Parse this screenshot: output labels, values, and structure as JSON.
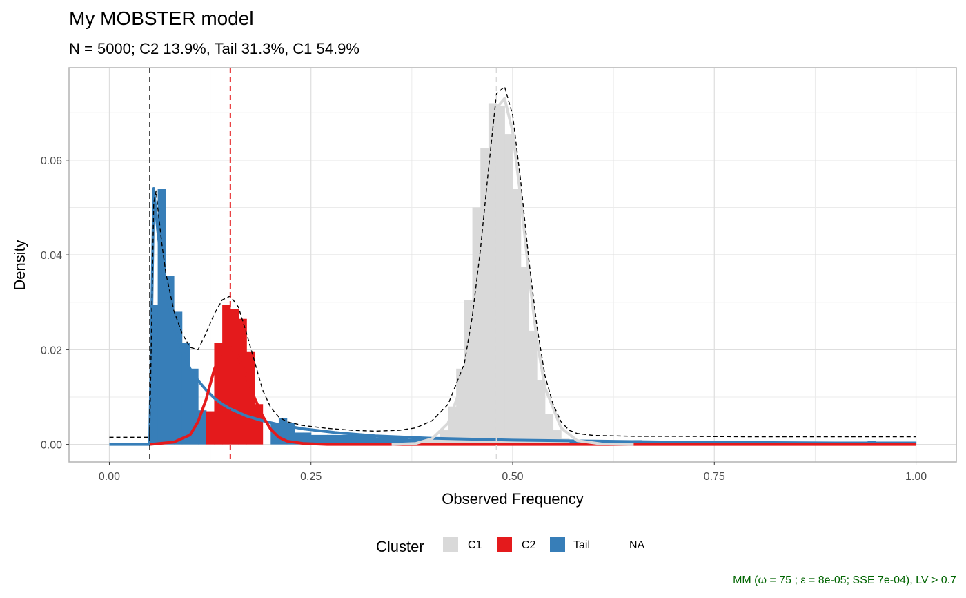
{
  "chart_data": {
    "type": "histogram",
    "title": "My MOBSTER model",
    "subtitle": "N = 5000; C2 13.9%, Tail 31.3%, C1 54.9%",
    "xlabel": "Observed Frequency",
    "ylabel": "Density",
    "xlim": [
      -0.05,
      1.05
    ],
    "ylim": [
      -0.0037,
      0.0795
    ],
    "x_ticks": [
      0,
      0.25,
      0.5,
      0.75,
      1
    ],
    "x_tick_labels": [
      "0.00",
      "0.25",
      "0.50",
      "0.75",
      "1.00"
    ],
    "y_ticks": [
      0,
      0.02,
      0.04,
      0.06
    ],
    "y_tick_labels": [
      "0.00",
      "0.02",
      "0.04",
      "0.06"
    ],
    "grid": true,
    "legend_position": "bottom",
    "legend": {
      "title": "Cluster",
      "entries": [
        {
          "label": "C1",
          "color": "#d9d9d9"
        },
        {
          "label": "C2",
          "color": "#e41a1c"
        },
        {
          "label": "Tail",
          "color": "#377eb8"
        },
        {
          "label": "NA",
          "color": null
        }
      ]
    },
    "caption": "MM (ω = 75 ; ε = 8e-05; SSE 7e-04), LV > 0.7",
    "caption_color": "#006400",
    "colors": {
      "C1": "#d9d9d9",
      "C2": "#e41a1c",
      "Tail": "#377eb8",
      "mixture": "#000000"
    },
    "vlines": [
      {
        "x": 0.05,
        "color": "#000000",
        "style": "dashed"
      },
      {
        "x": 0.15,
        "color": "#e41a1c",
        "style": "dashed"
      },
      {
        "x": 0.48,
        "color": "#d9d9d9",
        "style": "dashed"
      }
    ],
    "series": [
      {
        "name": "Tail",
        "kind": "bars",
        "color": "#377eb8",
        "x": [
          0.055,
          0.065,
          0.075,
          0.085,
          0.095,
          0.105,
          0.115,
          0.205,
          0.215,
          0.225,
          0.235,
          0.245,
          0.255,
          0.265,
          0.275,
          0.285,
          0.295,
          0.305,
          0.315,
          0.325,
          0.335,
          0.345,
          0.355,
          0.365,
          0.375,
          0.385,
          0.395,
          0.405,
          0.415,
          0.425,
          0.435,
          0.445,
          0.455,
          0.465,
          0.475,
          0.485,
          0.495,
          0.505,
          0.515,
          0.525,
          0.535,
          0.545,
          0.555,
          0.565,
          0.575,
          0.585,
          0.595,
          0.605,
          0.615,
          0.625,
          0.635,
          0.645,
          0.655,
          0.665,
          0.675,
          0.685,
          0.695,
          0.705,
          0.715,
          0.725,
          0.735,
          0.745,
          0.755,
          0.765,
          0.775,
          0.785,
          0.795,
          0.805,
          0.815,
          0.825,
          0.835,
          0.845,
          0.855,
          0.865,
          0.875,
          0.885,
          0.895,
          0.905,
          0.915,
          0.925,
          0.935,
          0.945,
          0.955,
          0.965,
          0.975,
          0.985,
          0.995
        ],
        "values": [
          0.0295,
          0.054,
          0.0355,
          0.028,
          0.0215,
          0.016,
          0.0072,
          0.0045,
          0.0055,
          0.0045,
          0.0025,
          0.0025,
          0.002,
          0.002,
          0.002,
          0.002,
          0.002,
          0.002,
          0.002,
          0.0018,
          0.0015,
          0.0015,
          0.0014,
          0.0013,
          0.0012,
          0.0012,
          0.0015,
          0.0011,
          0.0011,
          0.0011,
          0.001,
          0.001,
          0.001,
          0.001,
          0.001,
          0.001,
          0.001,
          0.001,
          0.001,
          0.001,
          0.0009,
          0.0009,
          0.0009,
          0.0009,
          0.0008,
          0.0008,
          0.0008,
          0.0008,
          0.0009,
          0.0008,
          0.0008,
          0.0007,
          0.0009,
          0.0008,
          0.0007,
          0.0007,
          0.0007,
          0.0007,
          0.0006,
          0.0007,
          0.0006,
          0.0007,
          0.0007,
          0.0007,
          0.0006,
          0.0006,
          0.0006,
          0.0006,
          0.0006,
          0.0006,
          0.0006,
          0.0006,
          0.0006,
          0.0006,
          0.0006,
          0.0006,
          0.0006,
          0.0006,
          0.0006,
          0.0006,
          0.0006,
          0.0007,
          0.0006,
          0.0006,
          0.0006,
          0.0006,
          0.0006
        ]
      },
      {
        "name": "C2",
        "kind": "bars",
        "color": "#e41a1c",
        "x": [
          0.125,
          0.135,
          0.145,
          0.155,
          0.165,
          0.175,
          0.185
        ],
        "values": [
          0.007,
          0.0215,
          0.0295,
          0.0285,
          0.0265,
          0.0195,
          0.0085
        ]
      },
      {
        "name": "C1",
        "kind": "bars",
        "color": "#d9d9d9",
        "x": [
          0.395,
          0.405,
          0.415,
          0.425,
          0.435,
          0.445,
          0.455,
          0.465,
          0.475,
          0.485,
          0.495,
          0.505,
          0.515,
          0.525,
          0.535,
          0.545,
          0.555,
          0.565
        ],
        "values": [
          0.001,
          0.0015,
          0.003,
          0.008,
          0.016,
          0.0305,
          0.05,
          0.0625,
          0.072,
          0.0715,
          0.0655,
          0.054,
          0.0375,
          0.024,
          0.0135,
          0.0065,
          0.003,
          0.0012
        ]
      },
      {
        "name": "Tail",
        "kind": "density",
        "color": "#377eb8",
        "x": [
          0.05,
          0.055,
          0.06,
          0.065,
          0.07,
          0.08,
          0.09,
          0.1,
          0.11,
          0.12,
          0.13,
          0.14,
          0.15,
          0.17,
          0.19,
          0.21,
          0.24,
          0.28,
          0.33,
          0.4,
          0.5,
          0.6,
          0.7,
          0.8,
          0.9,
          1.0
        ],
        "values": [
          0.0,
          0.054,
          0.045,
          0.038,
          0.0325,
          0.025,
          0.02,
          0.016,
          0.0135,
          0.0115,
          0.0098,
          0.0085,
          0.0075,
          0.006,
          0.005,
          0.0042,
          0.0033,
          0.0025,
          0.0018,
          0.0013,
          0.0009,
          0.0007,
          0.0005,
          0.0004,
          0.0003,
          0.0002
        ]
      },
      {
        "name": "C2",
        "kind": "density",
        "color": "#e41a1c",
        "x": [
          0.05,
          0.08,
          0.1,
          0.11,
          0.12,
          0.13,
          0.14,
          0.15,
          0.16,
          0.17,
          0.18,
          0.19,
          0.2,
          0.21,
          0.22,
          0.24,
          0.27,
          0.3,
          0.4,
          0.5,
          0.6,
          0.7,
          0.8,
          0.9,
          1.0
        ],
        "values": [
          0.0,
          0.0005,
          0.002,
          0.0048,
          0.0095,
          0.0158,
          0.0198,
          0.0205,
          0.0185,
          0.0145,
          0.0098,
          0.006,
          0.0032,
          0.0015,
          0.0007,
          0.0002,
          0.0,
          0.0,
          0.0,
          0.0,
          0.0,
          0.0,
          0.0,
          0.0,
          0.0
        ]
      },
      {
        "name": "C1",
        "kind": "density",
        "color": "#d9d9d9",
        "x": [
          0.35,
          0.38,
          0.4,
          0.42,
          0.44,
          0.45,
          0.46,
          0.47,
          0.48,
          0.49,
          0.5,
          0.51,
          0.52,
          0.53,
          0.54,
          0.56,
          0.58,
          0.61,
          0.65
        ],
        "values": [
          0.0,
          0.0002,
          0.0012,
          0.0045,
          0.014,
          0.024,
          0.038,
          0.055,
          0.071,
          0.073,
          0.066,
          0.052,
          0.036,
          0.022,
          0.012,
          0.0035,
          0.0008,
          0.0001,
          0.0
        ]
      },
      {
        "name": "",
        "kind": "mixture",
        "color": "#000000",
        "x": [
          0.0,
          0.05,
          0.055,
          0.058,
          0.06,
          0.065,
          0.07,
          0.08,
          0.09,
          0.1,
          0.11,
          0.12,
          0.13,
          0.14,
          0.15,
          0.16,
          0.17,
          0.18,
          0.19,
          0.2,
          0.21,
          0.22,
          0.24,
          0.27,
          0.3,
          0.33,
          0.36,
          0.38,
          0.4,
          0.42,
          0.44,
          0.45,
          0.46,
          0.47,
          0.48,
          0.49,
          0.5,
          0.51,
          0.52,
          0.53,
          0.54,
          0.55,
          0.56,
          0.57,
          0.58,
          0.6,
          0.65,
          0.7,
          0.8,
          0.9,
          1.0
        ],
        "values": [
          0.0015,
          0.0015,
          0.051,
          0.0535,
          0.05,
          0.0425,
          0.0362,
          0.0282,
          0.0235,
          0.0205,
          0.02,
          0.0235,
          0.0275,
          0.0305,
          0.0313,
          0.029,
          0.0235,
          0.0175,
          0.0115,
          0.0078,
          0.0058,
          0.0048,
          0.004,
          0.0034,
          0.003,
          0.0028,
          0.003,
          0.0035,
          0.005,
          0.0085,
          0.017,
          0.027,
          0.041,
          0.058,
          0.074,
          0.0755,
          0.0695,
          0.0555,
          0.039,
          0.025,
          0.0145,
          0.0085,
          0.0048,
          0.003,
          0.0023,
          0.0019,
          0.0017,
          0.0017,
          0.0016,
          0.0016,
          0.0016
        ]
      }
    ]
  }
}
